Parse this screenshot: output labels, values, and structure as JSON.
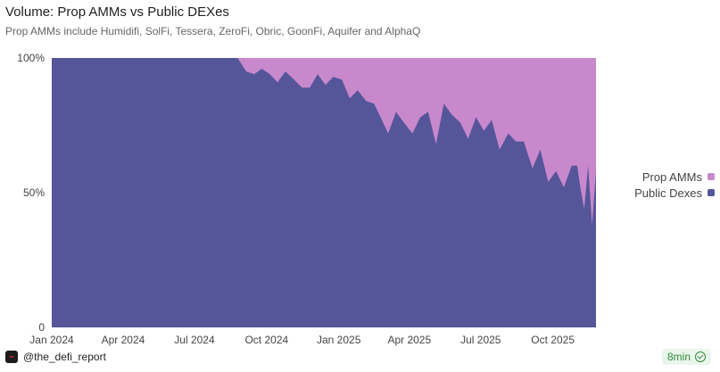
{
  "title": "Volume: Prop AMMs vs Public DEXes",
  "subtitle": "Prop AMMs include Humidifi, SolFi, Tessera, ZeroFi, Obric, GoonFi, Aquifer and AlphaQ",
  "footer": {
    "author": "@the_defi_report",
    "badge": "8min"
  },
  "legend": [
    {
      "label": "Prop AMMs",
      "color": "#c888cc"
    },
    {
      "label": "Public Dexes",
      "color": "#55559a"
    }
  ],
  "chart_data": {
    "type": "area",
    "stacked_percent": true,
    "title": "Volume: Prop AMMs vs Public DEXes",
    "xlabel": "",
    "ylabel": "",
    "ylim": [
      0,
      100
    ],
    "y_ticks": [
      "0",
      "50%",
      "100%"
    ],
    "x_ticks": [
      "Jan 2024",
      "Apr 2024",
      "Jul 2024",
      "Oct 2024",
      "Jan 2025",
      "Apr 2025",
      "Jul 2025",
      "Oct 2025"
    ],
    "x_tick_dates": [
      "2024-01-01",
      "2024-04-01",
      "2024-07-01",
      "2024-10-01",
      "2025-01-01",
      "2025-04-01",
      "2025-07-01",
      "2025-10-01"
    ],
    "x_range": [
      "2024-01-01",
      "2025-11-25"
    ],
    "legend_position": "right",
    "series": [
      {
        "name": "Public Dexes",
        "color": "#55559a"
      },
      {
        "name": "Prop AMMs",
        "color": "#c888cc"
      }
    ],
    "public_dexes_share_pct": {
      "dates": [
        "2024-01-01",
        "2024-08-25",
        "2024-09-05",
        "2024-09-15",
        "2024-09-25",
        "2024-10-05",
        "2024-10-15",
        "2024-10-25",
        "2024-11-05",
        "2024-11-15",
        "2024-11-25",
        "2024-12-05",
        "2024-12-15",
        "2024-12-25",
        "2025-01-05",
        "2025-01-15",
        "2025-01-25",
        "2025-02-05",
        "2025-02-15",
        "2025-02-25",
        "2025-03-05",
        "2025-03-15",
        "2025-03-25",
        "2025-04-05",
        "2025-04-15",
        "2025-04-25",
        "2025-05-05",
        "2025-05-15",
        "2025-05-25",
        "2025-06-05",
        "2025-06-15",
        "2025-06-25",
        "2025-07-05",
        "2025-07-15",
        "2025-07-25",
        "2025-08-05",
        "2025-08-15",
        "2025-08-25",
        "2025-09-05",
        "2025-09-15",
        "2025-09-25",
        "2025-10-05",
        "2025-10-15",
        "2025-10-25",
        "2025-11-01",
        "2025-11-05",
        "2025-11-10",
        "2025-11-15",
        "2025-11-20",
        "2025-11-25"
      ],
      "values": [
        100,
        100,
        95,
        94,
        96,
        94,
        91,
        95,
        92,
        89,
        89,
        94,
        90,
        93,
        92,
        85,
        88,
        84,
        83,
        77,
        72,
        80,
        76,
        72,
        78,
        80,
        68,
        83,
        79,
        76,
        70,
        78,
        73,
        77,
        66,
        72,
        69,
        69,
        59,
        66,
        54,
        58,
        52,
        60,
        60,
        52,
        44,
        60,
        38,
        58
      ]
    }
  }
}
